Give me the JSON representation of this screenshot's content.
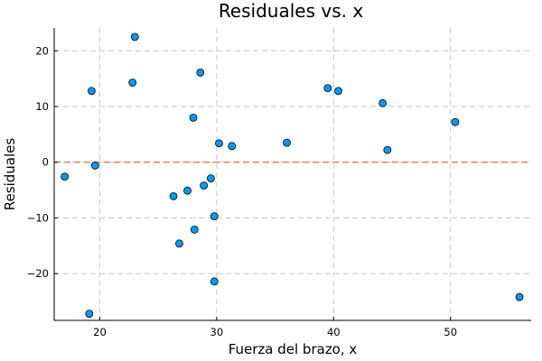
{
  "chart_data": {
    "type": "scatter",
    "title": "Residuales vs. x",
    "xlabel": "Fuerza del brazo, x",
    "ylabel": "Residuales",
    "xlim": [
      16.1,
      56.9
    ],
    "ylim": [
      -28.4,
      24.1
    ],
    "xticks": [
      20,
      30,
      40,
      50
    ],
    "yticks": [
      -20,
      -10,
      0,
      10,
      20
    ],
    "xtick_labels": [
      "20",
      "30",
      "40",
      "50"
    ],
    "ytick_labels": [
      "−20",
      "−10",
      "0",
      "10",
      "20"
    ],
    "grid": true,
    "reference_line": {
      "y": 0,
      "color": "#e26f46",
      "style": "dashed"
    },
    "point_color": "#009af9",
    "x": [
      17.0,
      19.1,
      19.3,
      19.6,
      22.8,
      23.0,
      26.3,
      26.8,
      27.5,
      28.0,
      28.1,
      28.6,
      28.9,
      29.5,
      29.8,
      29.8,
      30.2,
      31.3,
      36.0,
      39.5,
      40.4,
      44.2,
      44.6,
      50.4,
      55.9
    ],
    "y": [
      -2.6,
      -27.2,
      12.8,
      -0.6,
      14.3,
      22.5,
      -6.1,
      -14.6,
      -5.1,
      8.0,
      -12.1,
      16.1,
      -4.2,
      -2.9,
      -9.7,
      -21.4,
      3.4,
      2.9,
      3.5,
      13.3,
      12.8,
      10.6,
      2.2,
      7.2,
      -24.2
    ]
  }
}
